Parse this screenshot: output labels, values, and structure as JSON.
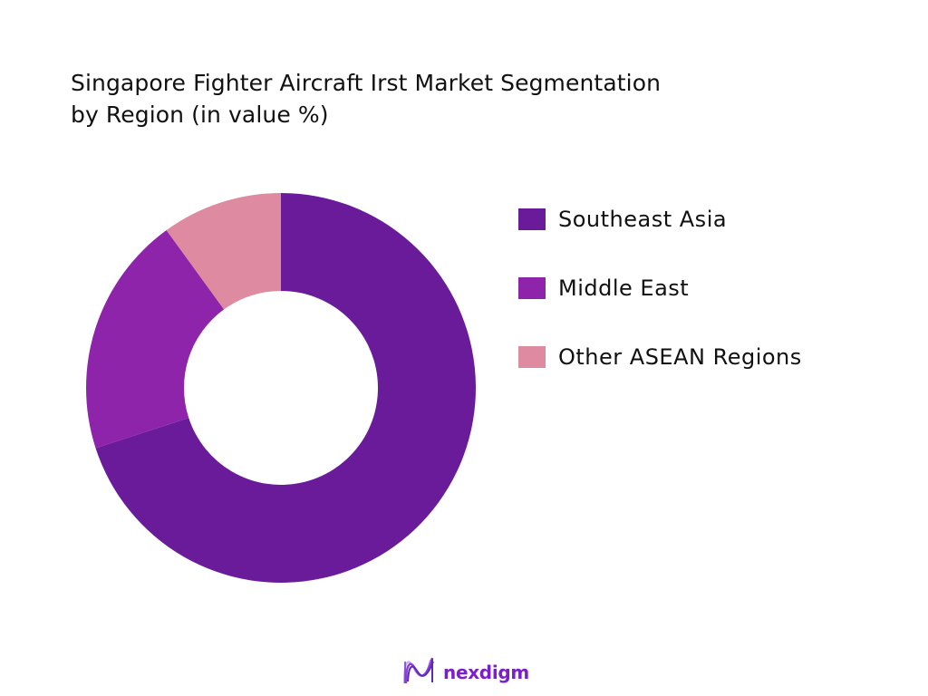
{
  "title": {
    "line1": "Singapore Fighter Aircraft Irst Market Segmentation",
    "line2": "by Region (in value %)"
  },
  "chart_data": {
    "type": "pie",
    "variant": "donut",
    "title": "Singapore Fighter Aircraft Irst Market Segmentation by Region (in value %)",
    "categories": [
      "Southeast Asia",
      "Middle East",
      "Other ASEAN Regions"
    ],
    "values": [
      70,
      20,
      10
    ],
    "colors": [
      "#6a1b9a",
      "#8e24aa",
      "#de8aa0"
    ],
    "start_angle_deg": 0,
    "direction": "clockwise",
    "legend_position": "right",
    "data_labels": false
  },
  "legend": {
    "items": [
      {
        "label": "Southeast Asia",
        "color": "#6a1b9a"
      },
      {
        "label": "Middle East",
        "color": "#8e24aa"
      },
      {
        "label": "Other ASEAN Regions",
        "color": "#de8aa0"
      }
    ]
  },
  "brand": {
    "name": "nexdigm",
    "icon": "nexdigm-wave-logo-icon"
  }
}
